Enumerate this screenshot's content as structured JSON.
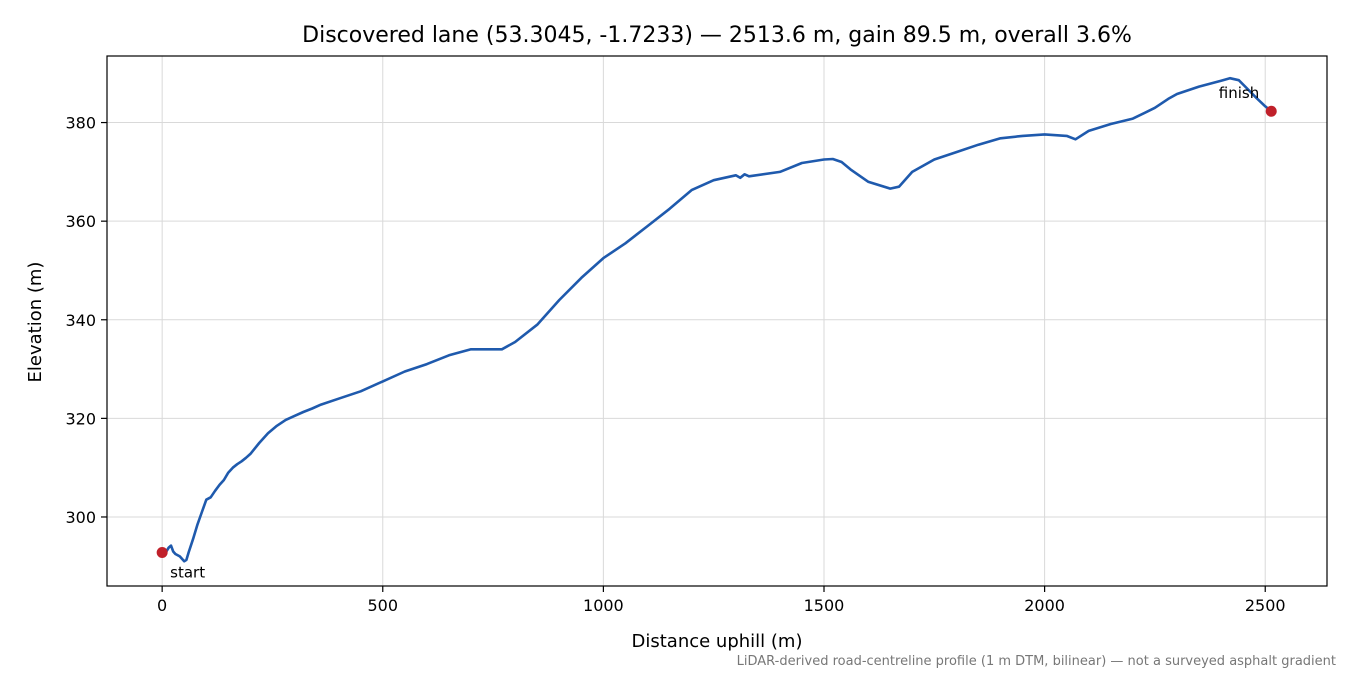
{
  "chart_data": {
    "type": "line",
    "title": "Discovered lane (53.3045, -1.7233) — 2513.6 m, gain 89.5 m, overall 3.6%",
    "xlabel": "Distance uphill (m)",
    "ylabel": "Elevation (m)",
    "xlim": [
      -125,
      2640
    ],
    "ylim": [
      286,
      393.5
    ],
    "xticks": [
      0,
      500,
      1000,
      1500,
      2000,
      2500
    ],
    "yticks": [
      300,
      320,
      340,
      360,
      380
    ],
    "grid": true,
    "line_color": "#1f5aad",
    "marker_color": "#c0202a",
    "series": [
      {
        "x": [
          0,
          10,
          15,
          20,
          25,
          30,
          40,
          50,
          55,
          60,
          70,
          80,
          90,
          100,
          110,
          120,
          130,
          140,
          150,
          160,
          170,
          180,
          190,
          200,
          220,
          240,
          260,
          280,
          300,
          320,
          340,
          360,
          400,
          450,
          500,
          550,
          600,
          650,
          700,
          740,
          770,
          800,
          850,
          900,
          950,
          1000,
          1050,
          1100,
          1150,
          1200,
          1250,
          1300,
          1310,
          1320,
          1330,
          1400,
          1450,
          1500,
          1520,
          1540,
          1560,
          1600,
          1650,
          1670,
          1700,
          1750,
          1800,
          1850,
          1900,
          1950,
          2000,
          2050,
          2070,
          2100,
          2150,
          2200,
          2250,
          2280,
          2300,
          2350,
          2400,
          2420,
          2440,
          2460,
          2480,
          2500,
          2513.6
        ],
        "y": [
          292.8,
          293.1,
          293.8,
          294.2,
          293.0,
          292.5,
          292.0,
          291.0,
          291.3,
          292.8,
          295.5,
          298.5,
          301.0,
          303.5,
          304.0,
          305.3,
          306.5,
          307.5,
          309.0,
          310.0,
          310.7,
          311.3,
          312.0,
          312.8,
          315.0,
          317.0,
          318.5,
          319.7,
          320.5,
          321.3,
          322.0,
          322.8,
          324.0,
          325.5,
          327.5,
          329.5,
          331.0,
          332.8,
          334.0,
          334.0,
          334.0,
          335.5,
          339.0,
          344.0,
          348.5,
          352.5,
          355.5,
          359.0,
          362.5,
          366.3,
          368.3,
          369.3,
          368.8,
          369.5,
          369.1,
          370.0,
          371.8,
          372.5,
          372.6,
          372.0,
          370.5,
          368.0,
          366.6,
          367.0,
          370.0,
          372.5,
          374.0,
          375.5,
          376.8,
          377.3,
          377.6,
          377.3,
          376.6,
          378.3,
          379.7,
          380.8,
          383.0,
          384.8,
          385.8,
          387.3,
          388.5,
          389.0,
          388.6,
          386.8,
          385.0,
          383.3,
          382.3
        ]
      }
    ],
    "annotations": [
      {
        "text": "start",
        "x": 0,
        "y": 292.8
      },
      {
        "text": "finish",
        "x": 2513.6,
        "y": 382.3
      }
    ]
  },
  "footnote": "LiDAR-derived road-centreline profile (1 m DTM, bilinear) — not a surveyed asphalt gradient"
}
